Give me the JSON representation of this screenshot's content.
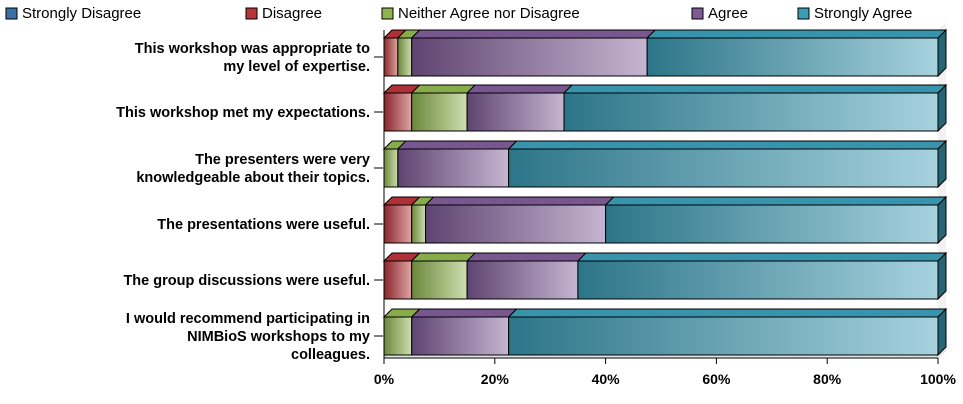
{
  "chart_data": {
    "type": "bar",
    "orientation": "horizontal",
    "stacked": "percent",
    "style": "3d",
    "categories": [
      [
        "This workshop was appropriate to",
        "my level of expertise."
      ],
      [
        "This workshop met my expectations."
      ],
      [
        "The presenters were very",
        "knowledgeable about their topics."
      ],
      [
        "The presentations were useful."
      ],
      [
        "The group discussions were useful."
      ],
      [
        "I would recommend participating in",
        "NIMBioS workshops to my",
        "colleagues."
      ]
    ],
    "series": [
      {
        "name": "Strongly Disagree",
        "color": "#3b6fa6",
        "values": [
          0,
          0,
          0,
          0,
          0,
          0
        ]
      },
      {
        "name": "Disagree",
        "color": "#b83438",
        "values": [
          2.5,
          5,
          0,
          5,
          5,
          0
        ]
      },
      {
        "name": "Neither Agree nor Disagree",
        "color": "#8fb54e",
        "values": [
          2.5,
          10,
          2.5,
          2.5,
          10,
          5
        ]
      },
      {
        "name": "Agree",
        "color": "#7e5a97",
        "values": [
          42.5,
          17.5,
          20,
          32.5,
          20,
          17.5
        ]
      },
      {
        "name": "Strongly Agree",
        "color": "#3b9cb5",
        "values": [
          52.5,
          67.5,
          77.5,
          60,
          65,
          77.5
        ]
      }
    ],
    "x_ticks": [
      "0%",
      "20%",
      "40%",
      "60%",
      "80%",
      "100%"
    ],
    "xlim": [
      0,
      100
    ],
    "legend": "top",
    "grid": false
  }
}
